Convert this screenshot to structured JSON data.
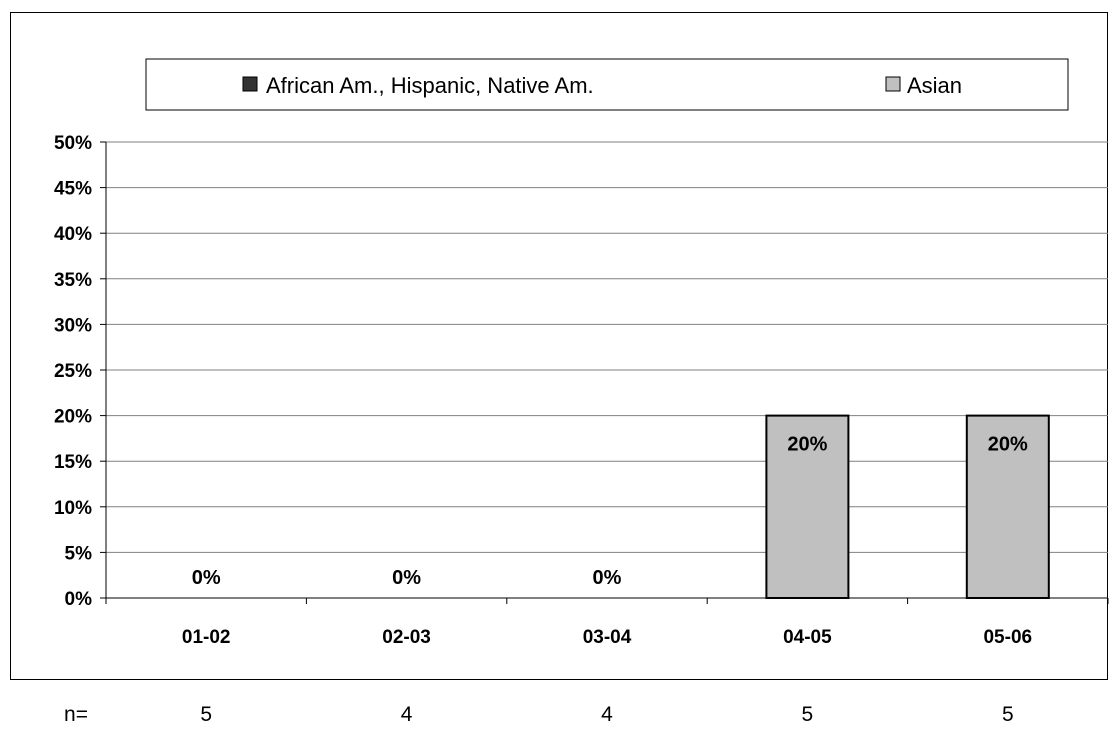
{
  "colors": {
    "series_1": "#333333",
    "series_2": "#c0c0c0",
    "gridline": "#808080",
    "axis": "#000000",
    "bar_outline": "#000000"
  },
  "chart_data": {
    "type": "bar",
    "categories": [
      "01-02",
      "02-03",
      "03-04",
      "04-05",
      "05-06"
    ],
    "series": [
      {
        "name": "African Am., Hispanic, Native Am.",
        "values": [
          0,
          0,
          0,
          0,
          0
        ],
        "color": "#333333"
      },
      {
        "name": "Asian",
        "values": [
          0,
          0,
          0,
          20,
          20
        ],
        "color": "#c0c0c0"
      }
    ],
    "data_labels": [
      "0%",
      "0%",
      "0%",
      "20%",
      "20%"
    ],
    "ylim": [
      0,
      50
    ],
    "y_ticks": [
      "0%",
      "5%",
      "10%",
      "15%",
      "20%",
      "25%",
      "30%",
      "35%",
      "40%",
      "45%",
      "50%"
    ],
    "grid": true,
    "legend_position": "top",
    "n_label": "n=",
    "n_values": [
      "5",
      "4",
      "4",
      "5",
      "5"
    ]
  }
}
